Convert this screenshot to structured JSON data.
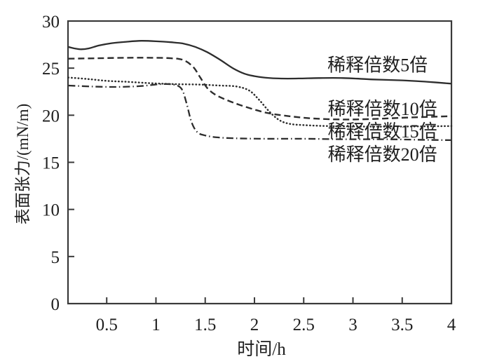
{
  "figure": {
    "background": "#ffffff",
    "axis_color": "#3a3a3a",
    "line_color": "#2d2d2d",
    "text_color": "#1e1e1e"
  },
  "chart_data": {
    "type": "line",
    "title": "",
    "xlabel": "时间/h",
    "ylabel": "表面张力/(mN/m)",
    "xlim": [
      0.107,
      4.0
    ],
    "ylim": [
      0,
      30
    ],
    "grid": false,
    "legend_position": "inline-annotations",
    "x_ticks": [
      0.5,
      1,
      1.5,
      2,
      2.5,
      3,
      3.5,
      4
    ],
    "x_tick_labels": [
      "0.5",
      "1",
      "1.5",
      "2",
      "2.5",
      "3",
      "3.5",
      "4"
    ],
    "y_ticks": [
      0,
      5,
      10,
      15,
      20,
      25,
      30
    ],
    "y_tick_labels": [
      "0",
      "5",
      "10",
      "15",
      "20",
      "25",
      "30"
    ],
    "series": [
      {
        "name": "稀释倍数5倍",
        "line_style": "solid",
        "points": [
          [
            0.11,
            27.25
          ],
          [
            0.17,
            27.1
          ],
          [
            0.24,
            27.0
          ],
          [
            0.32,
            27.1
          ],
          [
            0.42,
            27.4
          ],
          [
            0.55,
            27.65
          ],
          [
            0.7,
            27.8
          ],
          [
            0.85,
            27.9
          ],
          [
            1.0,
            27.85
          ],
          [
            1.15,
            27.75
          ],
          [
            1.28,
            27.6
          ],
          [
            1.4,
            27.25
          ],
          [
            1.52,
            26.7
          ],
          [
            1.65,
            25.9
          ],
          [
            1.78,
            25.0
          ],
          [
            1.9,
            24.4
          ],
          [
            2.0,
            24.15
          ],
          [
            2.1,
            24.0
          ],
          [
            2.25,
            23.9
          ],
          [
            2.45,
            23.9
          ],
          [
            2.65,
            23.95
          ],
          [
            2.9,
            23.95
          ],
          [
            3.2,
            23.8
          ],
          [
            3.5,
            23.7
          ],
          [
            3.75,
            23.55
          ],
          [
            4.0,
            23.35
          ]
        ]
      },
      {
        "name": "稀释倍数10倍",
        "line_style": "dashed",
        "points": [
          [
            0.11,
            26.0
          ],
          [
            0.4,
            26.05
          ],
          [
            0.7,
            26.1
          ],
          [
            0.95,
            26.1
          ],
          [
            1.15,
            26.05
          ],
          [
            1.28,
            25.85
          ],
          [
            1.38,
            25.1
          ],
          [
            1.45,
            24.0
          ],
          [
            1.52,
            22.9
          ],
          [
            1.6,
            22.2
          ],
          [
            1.72,
            21.6
          ],
          [
            1.85,
            21.1
          ],
          [
            2.0,
            20.6
          ],
          [
            2.15,
            20.2
          ],
          [
            2.35,
            19.9
          ],
          [
            2.6,
            19.65
          ],
          [
            2.9,
            19.55
          ],
          [
            3.2,
            19.6
          ],
          [
            3.55,
            19.75
          ],
          [
            4.0,
            19.9
          ]
        ]
      },
      {
        "name": "稀释倍数15倍",
        "line_style": "dotted",
        "points": [
          [
            0.11,
            24.0
          ],
          [
            0.3,
            23.85
          ],
          [
            0.5,
            23.65
          ],
          [
            0.7,
            23.55
          ],
          [
            0.95,
            23.4
          ],
          [
            1.2,
            23.3
          ],
          [
            1.45,
            23.25
          ],
          [
            1.65,
            23.15
          ],
          [
            1.82,
            23.05
          ],
          [
            1.95,
            22.6
          ],
          [
            2.05,
            21.6
          ],
          [
            2.15,
            20.4
          ],
          [
            2.25,
            19.5
          ],
          [
            2.35,
            19.1
          ],
          [
            2.5,
            18.95
          ],
          [
            2.75,
            18.85
          ],
          [
            3.1,
            18.8
          ],
          [
            3.5,
            18.8
          ],
          [
            4.0,
            18.85
          ]
        ]
      },
      {
        "name": "稀释倍数20倍",
        "line_style": "dashdot",
        "points": [
          [
            0.11,
            23.15
          ],
          [
            0.35,
            23.05
          ],
          [
            0.6,
            23.0
          ],
          [
            0.85,
            23.1
          ],
          [
            1.05,
            23.3
          ],
          [
            1.18,
            23.25
          ],
          [
            1.26,
            22.8
          ],
          [
            1.31,
            21.3
          ],
          [
            1.36,
            19.3
          ],
          [
            1.42,
            18.2
          ],
          [
            1.5,
            17.85
          ],
          [
            1.62,
            17.65
          ],
          [
            1.8,
            17.55
          ],
          [
            2.1,
            17.5
          ],
          [
            2.5,
            17.5
          ],
          [
            2.9,
            17.45
          ],
          [
            3.3,
            17.45
          ],
          [
            3.65,
            17.4
          ],
          [
            4.0,
            17.35
          ]
        ]
      }
    ],
    "annotations": [
      {
        "text": "稀释倍数5倍",
        "x": 3.25,
        "y": 25.35
      },
      {
        "text": "稀释倍数10倍",
        "x": 3.3,
        "y": 20.7
      },
      {
        "text": "稀释倍数15倍",
        "x": 3.3,
        "y": 18.3
      },
      {
        "text": "稀释倍数20倍",
        "x": 3.3,
        "y": 15.85
      }
    ]
  }
}
